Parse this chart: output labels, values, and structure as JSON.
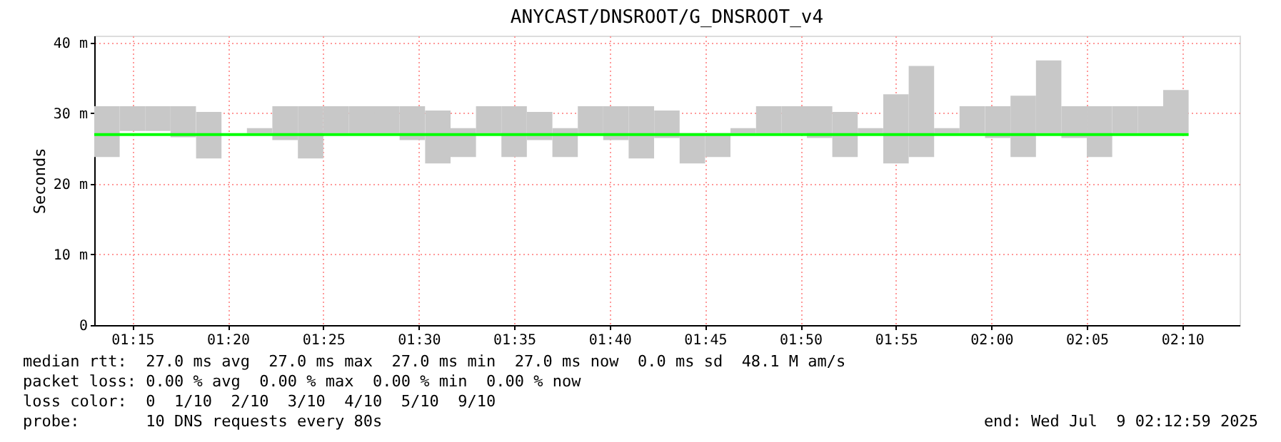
{
  "chart_data": {
    "type": "line",
    "title": "ANYCAST/DNSROOT/G_DNSROOT_v4",
    "ylabel": "Seconds",
    "xlim": [
      1.2167,
      2.2167
    ],
    "xticks": [
      {
        "value": 1.25,
        "label": "01:15"
      },
      {
        "value": 1.3333,
        "label": "01:20"
      },
      {
        "value": 1.4167,
        "label": "01:25"
      },
      {
        "value": 1.5,
        "label": "01:30"
      },
      {
        "value": 1.5833,
        "label": "01:35"
      },
      {
        "value": 1.6667,
        "label": "01:40"
      },
      {
        "value": 1.75,
        "label": "01:45"
      },
      {
        "value": 1.8333,
        "label": "01:50"
      },
      {
        "value": 1.9167,
        "label": "01:55"
      },
      {
        "value": 2.0,
        "label": "02:00"
      },
      {
        "value": 2.0833,
        "label": "02:05"
      },
      {
        "value": 2.1667,
        "label": "02:10"
      }
    ],
    "ylim": [
      0,
      41
    ],
    "yticks": [
      0,
      {
        "value": 10,
        "label": "10 m"
      },
      {
        "value": 20,
        "label": "20 m"
      },
      {
        "value": 30,
        "label": "30 m"
      },
      {
        "value": 40,
        "label": "40 m"
      }
    ],
    "grid": true,
    "series": [
      {
        "type": "bar",
        "color": "#c8c8c8",
        "x": [
          1.2278,
          1.25,
          1.2722,
          1.2944,
          1.3167,
          1.3389,
          1.3611,
          1.3833,
          1.4056,
          1.4278,
          1.45,
          1.4722,
          1.4944,
          1.5167,
          1.5389,
          1.5611,
          1.5833,
          1.6056,
          1.6278,
          1.65,
          1.6722,
          1.6944,
          1.7167,
          1.7389,
          1.7611,
          1.7833,
          1.8056,
          1.8278,
          1.85,
          1.8722,
          1.8944,
          1.9167,
          1.9389,
          1.9611,
          1.9833,
          2.0056,
          2.0278,
          2.05,
          2.0722,
          2.0944,
          2.1167,
          2.1389,
          2.1611
        ],
        "base": [
          23.8,
          27.5,
          27.5,
          26.6,
          23.6,
          null,
          27.2,
          26.2,
          23.6,
          27.2,
          27.2,
          27.2,
          26.2,
          22.9,
          23.8,
          27.2,
          23.8,
          26.2,
          23.8,
          27.2,
          26.2,
          23.6,
          26.5,
          22.9,
          23.8,
          27.2,
          27.2,
          27.2,
          26.5,
          23.8,
          27.2,
          22.9,
          23.8,
          27.2,
          27.2,
          26.5,
          23.8,
          27.2,
          26.5,
          23.8,
          27.2,
          27.2,
          27.2
        ],
        "values": [
          7.2,
          3.5,
          3.5,
          4.4,
          6.6,
          null,
          0.7,
          4.8,
          7.4,
          3.8,
          3.8,
          3.8,
          4.8,
          7.5,
          4.1,
          3.8,
          7.2,
          4.0,
          4.1,
          3.8,
          4.8,
          7.4,
          3.9,
          4.3,
          3.4,
          0.7,
          3.8,
          3.8,
          4.5,
          6.4,
          0.7,
          9.8,
          12.9,
          0.7,
          3.8,
          4.5,
          8.7,
          10.3,
          4.5,
          7.2,
          3.8,
          3.8,
          6.1
        ]
      },
      {
        "color": "#00ff00",
        "x": [
          1.2167,
          2.1722
        ],
        "values": [
          27,
          27
        ]
      }
    ],
    "annotations": [
      "median rtt:  27.0 ms avg  27.0 ms max  27.0 ms min  27.0 ms now  0.0 ms sd  48.1 M am/s",
      "packet loss: 0.00 % avg  0.00 % max  0.00 % min  0.00 % now",
      "loss color:  0  1/10  2/10  3/10  4/10  5/10  9/10",
      "probe:       10 DNS requests every 80s",
      "end: Wed Jul  9 02:12:59 2025"
    ]
  }
}
